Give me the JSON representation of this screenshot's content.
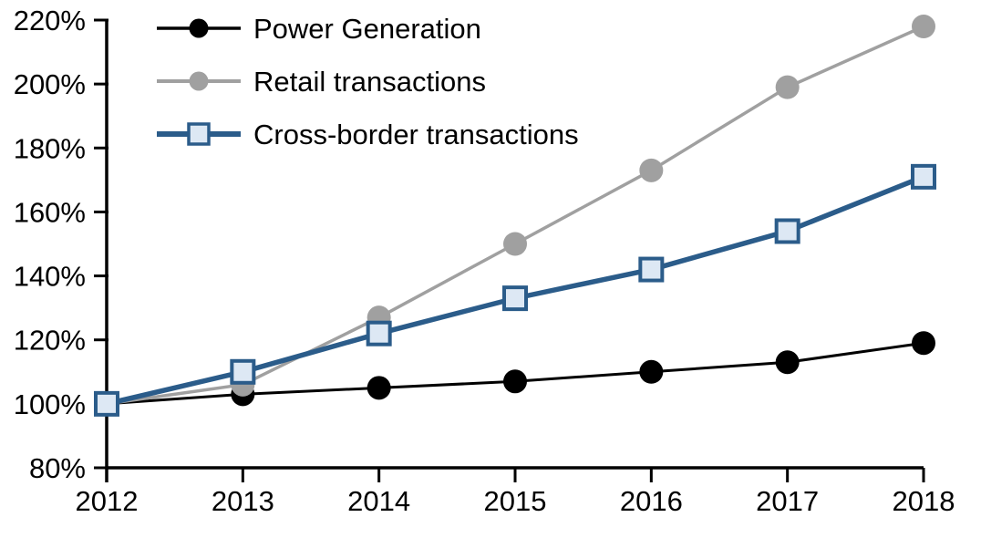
{
  "chart_data": {
    "type": "line",
    "title": "",
    "xlabel": "",
    "ylabel": "",
    "grid": false,
    "legend_position": "top-left",
    "ylim": [
      80,
      220
    ],
    "y_tick_step": 20,
    "y_ticks": [
      {
        "label": "220%",
        "value": 220
      },
      {
        "label": "200%",
        "value": 200
      },
      {
        "label": "180%",
        "value": 180
      },
      {
        "label": "160%",
        "value": 160
      },
      {
        "label": "140%",
        "value": 140
      },
      {
        "label": "120%",
        "value": 120
      },
      {
        "label": "100%",
        "value": 100
      },
      {
        "label": "80%",
        "value": 80
      }
    ],
    "categories": [
      "2012",
      "2013",
      "2014",
      "2015",
      "2016",
      "2017",
      "2018"
    ],
    "series": [
      {
        "name": "Power Generation",
        "marker": "circle",
        "color": "#000000",
        "marker_fill": "#000000",
        "line_width": 3,
        "values": [
          100,
          103,
          105,
          107,
          110,
          113,
          119
        ]
      },
      {
        "name": "Retail transactions",
        "marker": "circle",
        "color": "#A0A0A0",
        "marker_fill": "#A0A0A0",
        "line_width": 3.5,
        "values": [
          100,
          106,
          127,
          150,
          173,
          199,
          218
        ]
      },
      {
        "name": "Cross-border transactions",
        "marker": "square",
        "color": "#2B5C8A",
        "marker_fill": "#DDE8F4",
        "line_width": 5.5,
        "values": [
          100,
          110,
          122,
          133,
          142,
          154,
          171
        ]
      }
    ],
    "axis_color": "#000000",
    "tick_label_color": "#000000"
  }
}
